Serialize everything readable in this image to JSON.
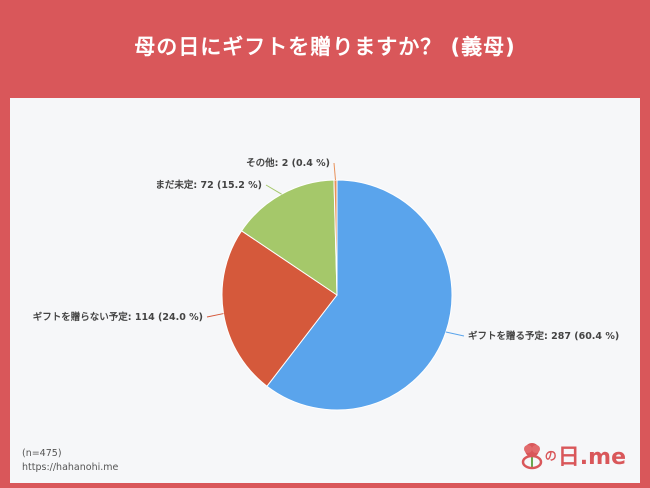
{
  "header": {
    "title": "母の日にギフトを贈りますか？ (義母)"
  },
  "footer": {
    "sample": "(n=475)",
    "url": "https://hahanohi.me"
  },
  "logo": {
    "text_main": "日.me",
    "text_small": "の"
  },
  "colors": {
    "background": "#d9575a",
    "panel": "#f6f7f9"
  },
  "chart_data": {
    "type": "pie",
    "title": "母の日にギフトを贈りますか？ (義母)",
    "slices": [
      {
        "label": "ギフトを贈る予定: 287 (60.4 %)",
        "value": 287,
        "percent": 60.4,
        "color": "#5aa4ec"
      },
      {
        "label": "ギフトを贈らない予定: 114 (24.0 %)",
        "value": 114,
        "percent": 24.0,
        "color": "#d5593b"
      },
      {
        "label": "まだ未定: 72 (15.2 %)",
        "value": 72,
        "percent": 15.2,
        "color": "#a5c86a"
      },
      {
        "label": "その他: 2 (0.4 %)",
        "value": 2,
        "percent": 0.4,
        "color": "#e8915a"
      }
    ]
  }
}
